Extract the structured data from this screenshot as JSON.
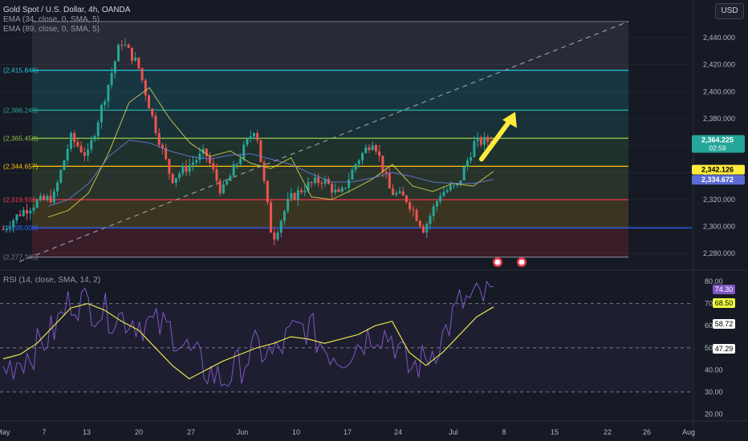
{
  "header": {
    "title": "Gold Spot / U.S. Dollar, 4h, OANDA",
    "ema34_label": "EMA (34, close, 0, SMA, 5)",
    "ema89_label": "EMA (89, close, 0, SMA, 5)",
    "currency_button": "USD"
  },
  "rsi_panel": {
    "label": "RSI (14, close, SMA, 14, 2)"
  },
  "colors": {
    "background": "#161a25",
    "up_candle": "#26a69a",
    "down_candle": "#ef5350",
    "ema34": "#d9d84c",
    "ema89": "#6a7ee0",
    "rsi_line": "#7e57c2",
    "rsi_ma": "#e8e34a",
    "arrow": "#ffeb3b",
    "fib_cyan": "#26c6da",
    "fib_teal": "#26a69a",
    "fib_green": "#8bc34a",
    "fib_yellow": "#ffc107",
    "fib_red": "#f23645",
    "fib_blue": "#2962ff"
  },
  "chart_data": [
    {
      "type": "candlestick",
      "title": "Gold Spot / U.S. Dollar, 4h, OANDA",
      "ylim": [
        2270,
        2462
      ],
      "y_ticks": [
        2280,
        2300,
        2320,
        2340,
        2360,
        2380,
        2400,
        2420,
        2440
      ],
      "y_tick_labels": [
        "2,280.000",
        "2,300.000",
        "2,320.000",
        "2,340.000",
        "2,360.000",
        "2,380.000",
        "2,400.000",
        "2,420.000",
        "2,440.000"
      ],
      "x_tick_labels": [
        "May",
        "7",
        "13",
        "20",
        "27",
        "Jun",
        "10",
        "17",
        "24",
        "Jul",
        "8",
        "15",
        "22",
        "26",
        "Aug"
      ],
      "fib_levels": [
        {
          "label": "(2,415.846)",
          "price": 2415.846,
          "color": "#26c6da"
        },
        {
          "label": "(2,386.243)",
          "price": 2386.243,
          "color": "#26a69a"
        },
        {
          "label": "(2,365.450)",
          "price": 2365.45,
          "color": "#8bc34a"
        },
        {
          "label": "(2,344.657)",
          "price": 2344.657,
          "color": "#ffc107"
        },
        {
          "label": "(2,319.931)",
          "price": 2319.931,
          "color": "#f23645"
        },
        {
          "label": "(2,299.000)",
          "price": 2299.0,
          "color": "#2962ff"
        },
        {
          "label": "(2,277.345)",
          "price": 2277.345,
          "color": "#787b86"
        }
      ],
      "price_labels": [
        {
          "value": "2,364.225",
          "sub": "02:59",
          "price": 2364.225,
          "bg": "#26a69a",
          "fg": "#ffffff"
        },
        {
          "value": "2,342.126",
          "price": 2342.126,
          "bg": "#ffeb3b",
          "fg": "#000000"
        },
        {
          "value": "2,334.672",
          "price": 2334.672,
          "bg": "#5b6bd6",
          "fg": "#ffffff"
        }
      ],
      "series": [
        {
          "name": "EMA (34, close, 0, SMA, 5)",
          "close_path": [
            2307,
            2312,
            2325,
            2355,
            2392,
            2403,
            2380,
            2362,
            2352,
            2356,
            2347,
            2343,
            2351,
            2322,
            2320,
            2327,
            2335,
            2346,
            2330,
            2326,
            2332,
            2330,
            2341
          ]
        },
        {
          "name": "EMA (89, close, 0, SMA, 5)",
          "close_path": [
            2315,
            2320,
            2332,
            2352,
            2364,
            2362,
            2356,
            2352,
            2350,
            2353,
            2354,
            2350,
            2346,
            2339,
            2333,
            2333,
            2336,
            2340,
            2337,
            2333,
            2332,
            2332,
            2335
          ]
        }
      ],
      "price_path": [
        2298,
        2310,
        2318,
        2322,
        2366,
        2352,
        2395,
        2438,
        2420,
        2375,
        2335,
        2345,
        2355,
        2325,
        2350,
        2375,
        2290,
        2320,
        2330,
        2335,
        2322,
        2348,
        2365,
        2326,
        2320,
        2298,
        2325,
        2330,
        2362,
        2364
      ]
    },
    {
      "type": "line",
      "title": "RSI (14, close, SMA, 14, 2)",
      "ylim": [
        18,
        84
      ],
      "y_ticks": [
        20,
        30,
        40,
        50,
        60,
        70,
        80
      ],
      "y_tick_labels": [
        "20.00",
        "30.00",
        "40.00",
        "50.00",
        "60.00",
        "70.00",
        "80.00"
      ],
      "bands": [
        70,
        50,
        30
      ],
      "value_labels": [
        {
          "value": "74.30",
          "bg": "#7e57c2",
          "fg": "#ffffff"
        },
        {
          "value": "68.50",
          "bg": "#eeff41",
          "fg": "#000000"
        },
        {
          "value": "58.72",
          "bg": "#ffffff",
          "fg": "#000000"
        },
        {
          "value": "47.29",
          "bg": "#ffffff",
          "fg": "#000000"
        }
      ],
      "series": [
        {
          "name": "RSI",
          "values": [
            40,
            45,
            50,
            58,
            72,
            70,
            66,
            64,
            62,
            60,
            58,
            48,
            40,
            35,
            42,
            50,
            46,
            56,
            60,
            50,
            46,
            52,
            58,
            55,
            40,
            45,
            55,
            70,
            72,
            74
          ]
        },
        {
          "name": "SMA",
          "values": [
            45,
            47,
            52,
            60,
            68,
            70,
            67,
            62,
            58,
            50,
            42,
            36,
            40,
            44,
            47,
            50,
            52,
            55,
            54,
            52,
            54,
            56,
            60,
            62,
            48,
            42,
            48,
            56,
            64,
            68.5
          ]
        }
      ]
    }
  ]
}
